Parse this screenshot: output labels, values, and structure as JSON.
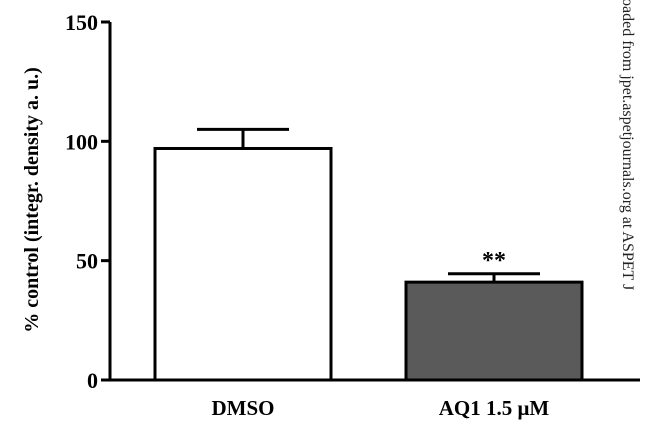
{
  "chart_data": {
    "type": "bar",
    "ylabel": "% control (integr. density a. u.)",
    "categories": [
      "DMSO",
      "AQ1 1.5 μM"
    ],
    "values": [
      97,
      41
    ],
    "errors": [
      8,
      3.5
    ],
    "colors": [
      "#ffffff",
      "#5a5a5a"
    ],
    "ylim": [
      0,
      150
    ],
    "yticks": [
      0,
      50,
      100,
      150
    ],
    "annotations": [
      {
        "category": 1,
        "text": "**"
      }
    ],
    "watermark": "oaded from jpet.aspetjournals.org at ASPET J"
  }
}
